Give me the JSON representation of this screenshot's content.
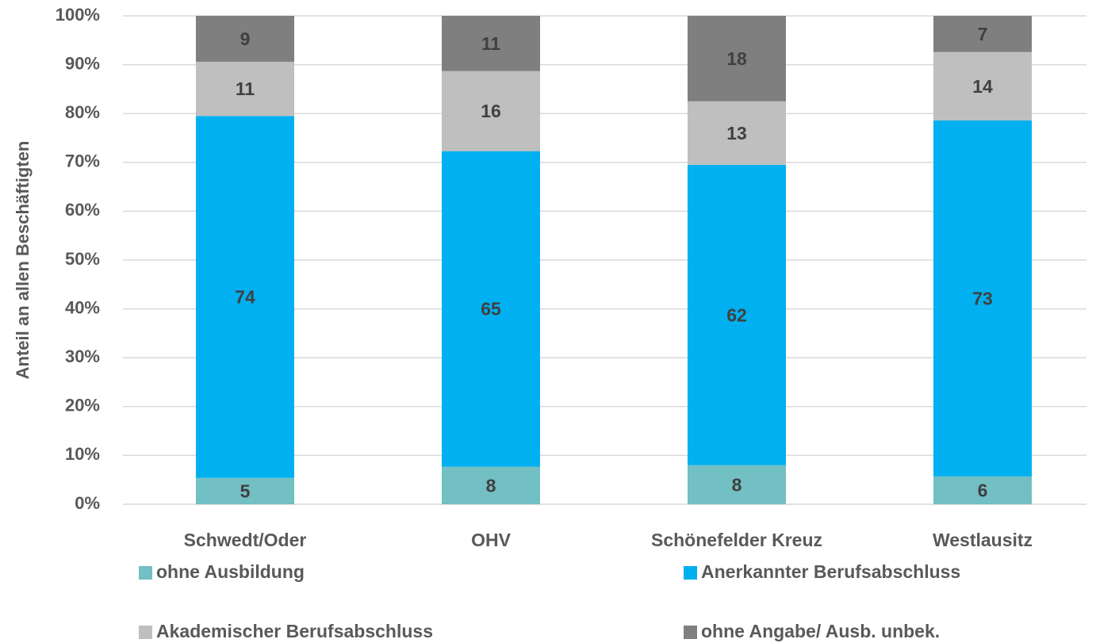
{
  "chart_data": {
    "type": "stacked_bar",
    "y_label": "Anteil an allen Beschäftigten",
    "categories": [
      "Schwedt/Oder",
      "OHV",
      "Schönefelder Kreuz",
      "Westlausitz"
    ],
    "series": [
      {
        "name": "ohne Ausbildung",
        "color": "#72BFC4",
        "values": [
          5.4,
          7.7,
          8.0,
          5.7
        ],
        "value_labels": [
          "5",
          "8",
          "8",
          "6"
        ]
      },
      {
        "name": "Anerkannter Berufsabschluss",
        "color": "#00B0F0",
        "values": [
          74.1,
          64.6,
          61.5,
          72.9
        ],
        "value_labels": [
          "74",
          "65",
          "62",
          "73"
        ]
      },
      {
        "name": "Akademischer Berufsabschluss",
        "color": "#BFBFBF",
        "values": [
          11.1,
          16.4,
          13.0,
          14.0
        ],
        "value_labels": [
          "11",
          "16",
          "13",
          "14"
        ]
      },
      {
        "name": "ohne Angabe/ Ausb. unbek.",
        "color": "#7F7F7F",
        "values": [
          9.4,
          11.3,
          17.5,
          7.4
        ],
        "value_labels": [
          "9",
          "11",
          "18",
          "7"
        ]
      }
    ],
    "ylim": [
      0,
      100
    ],
    "yticks": [
      {
        "value": 0,
        "label": "0%"
      },
      {
        "value": 10,
        "label": "10%"
      },
      {
        "value": 20,
        "label": "20%"
      },
      {
        "value": 30,
        "label": "30%"
      },
      {
        "value": 40,
        "label": "40%"
      },
      {
        "value": 50,
        "label": "50%"
      },
      {
        "value": 60,
        "label": "60%"
      },
      {
        "value": 70,
        "label": "70%"
      },
      {
        "value": 80,
        "label": "80%"
      },
      {
        "value": 90,
        "label": "90%"
      },
      {
        "value": 100,
        "label": "100%"
      }
    ],
    "grid": true
  }
}
